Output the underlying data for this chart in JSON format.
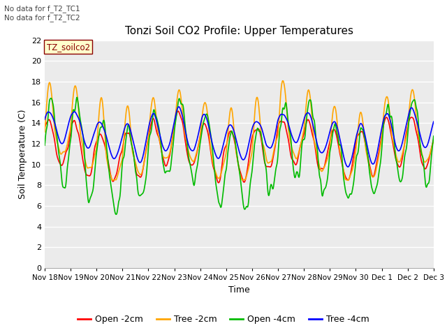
{
  "title": "Tonzi Soil CO2 Profile: Upper Temperatures",
  "xlabel": "Time",
  "ylabel": "Soil Temperature (C)",
  "ylim": [
    0,
    22
  ],
  "yticks": [
    0,
    2,
    4,
    6,
    8,
    10,
    12,
    14,
    16,
    18,
    20,
    22
  ],
  "colors": {
    "open_2cm": "#ff0000",
    "tree_2cm": "#ffa500",
    "open_4cm": "#00bb00",
    "tree_4cm": "#0000ff"
  },
  "legend_labels": [
    "Open -2cm",
    "Tree -2cm",
    "Open -4cm",
    "Tree -4cm"
  ],
  "legend_colors": [
    "#ff0000",
    "#ffa500",
    "#00bb00",
    "#0000ff"
  ],
  "note1": "No data for f_T2_TC1",
  "note2": "No data for f_T2_TC2",
  "dataset_label": "TZ_soilco2",
  "x_ticklabels": [
    "Nov 18",
    "Nov 19",
    "Nov 20",
    "Nov 21",
    "Nov 22",
    "Nov 23",
    "Nov 24",
    "Nov 25",
    "Nov 26",
    "Nov 27",
    "Nov 28",
    "Nov 29",
    "Nov 30",
    "Dec 1",
    "Dec 2",
    "Dec 3"
  ],
  "plot_bg_color": "#ebebeb",
  "linewidth": 1.2,
  "n_points": 900
}
